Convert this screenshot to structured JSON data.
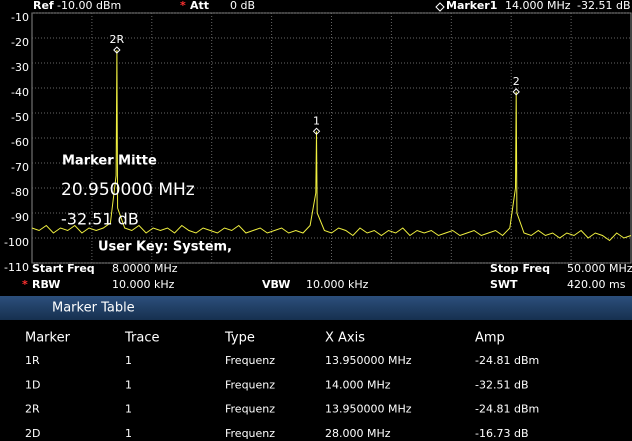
{
  "header": {
    "ref_label": "Ref",
    "ref": "-10.00 dBm",
    "att_star": "*",
    "att_label": "Att",
    "att": "0 dB",
    "marker_label": "Marker1",
    "marker_freq": "14.000 MHz",
    "marker_amp": "-32.51 dB"
  },
  "chart_data": {
    "type": "line",
    "color": "#f0f040",
    "xlim": [
      8,
      50
    ],
    "ylim": [
      -110,
      -10
    ],
    "yticks": [
      -10,
      -20,
      -30,
      -40,
      -50,
      -60,
      -70,
      -80,
      -90,
      -100,
      -110
    ],
    "grid": true,
    "x": [
      8,
      8.5,
      9,
      9.5,
      10,
      10.5,
      11,
      11.5,
      12,
      12.5,
      13,
      13.5,
      13.9,
      13.95,
      14,
      14.5,
      15,
      15.5,
      16,
      16.5,
      17,
      17.5,
      18,
      18.5,
      19,
      19.5,
      20,
      20.5,
      21,
      21.5,
      22,
      22.5,
      23,
      23.5,
      24,
      24.5,
      25,
      25.5,
      26,
      26.5,
      27,
      27.5,
      27.9,
      27.95,
      28,
      28.5,
      29,
      29.5,
      30,
      30.5,
      31,
      31.5,
      32,
      32.5,
      33,
      33.5,
      34,
      34.5,
      35,
      35.5,
      36,
      36.5,
      37,
      37.5,
      38,
      38.5,
      39,
      39.5,
      40,
      40.5,
      41,
      41.5,
      41.9,
      41.95,
      42,
      42.5,
      43,
      43.5,
      44,
      44.5,
      45,
      45.5,
      46,
      46.5,
      47,
      47.5,
      48,
      48.5,
      49,
      49.5,
      50
    ],
    "values": [
      -96,
      -97,
      -95,
      -98,
      -96,
      -97,
      -95,
      -98,
      -96,
      -97,
      -96,
      -94,
      -75,
      -24.81,
      -88,
      -96,
      -97,
      -95,
      -98,
      -96,
      -97,
      -96,
      -98,
      -95,
      -97,
      -98,
      -96,
      -97,
      -98,
      -96,
      -97,
      -95,
      -98,
      -97,
      -96,
      -98,
      -97,
      -96,
      -98,
      -97,
      -98,
      -95,
      -82,
      -57.32,
      -90,
      -97,
      -98,
      -96,
      -97,
      -99,
      -96,
      -98,
      -97,
      -99,
      -97,
      -98,
      -96,
      -99,
      -97,
      -98,
      -97,
      -99,
      -98,
      -97,
      -99,
      -98,
      -97,
      -99,
      -98,
      -97,
      -99,
      -96,
      -80,
      -41.54,
      -90,
      -98,
      -99,
      -97,
      -99,
      -98,
      -100,
      -98,
      -99,
      -97,
      -100,
      -98,
      -99,
      -101,
      -98,
      -100,
      -99
    ],
    "markers": [
      {
        "label": "2R",
        "x": 13.95,
        "y": -24.81
      },
      {
        "label": "1",
        "x": 27.95,
        "y": -57.32
      },
      {
        "label": "2",
        "x": 41.95,
        "y": -41.54
      }
    ]
  },
  "overlay": {
    "title": "Marker Mitte",
    "freq": "20.950000 MHz",
    "amp": "-32.51 dB",
    "user_key": "User Key:  System,"
  },
  "settings": {
    "start_label": "Start Freq",
    "start": "8.0000 MHz",
    "stop_label": "Stop Freq",
    "stop": "50.000 MHz",
    "rbw_star": "*",
    "rbw_label": "RBW",
    "rbw": "10.000 kHz",
    "vbw_label": "VBW",
    "vbw": "10.000 kHz",
    "swt_label": "SWT",
    "swt": "420.00 ms"
  },
  "marker_table": {
    "title": "Marker Table",
    "columns": [
      "Marker",
      "Trace",
      "Type",
      "X Axis",
      "Amp"
    ],
    "rows": [
      [
        "1R",
        "1",
        "Frequenz",
        "13.950000 MHz",
        "-24.81 dBm"
      ],
      [
        "1D",
        "1",
        "Frequenz",
        "14.000 MHz",
        "-32.51 dB"
      ],
      [
        "2R",
        "1",
        "Frequenz",
        "13.950000 MHz",
        "-24.81 dBm"
      ],
      [
        "2D",
        "1",
        "Frequenz",
        "28.000 MHz",
        "-16.73 dB"
      ]
    ]
  }
}
